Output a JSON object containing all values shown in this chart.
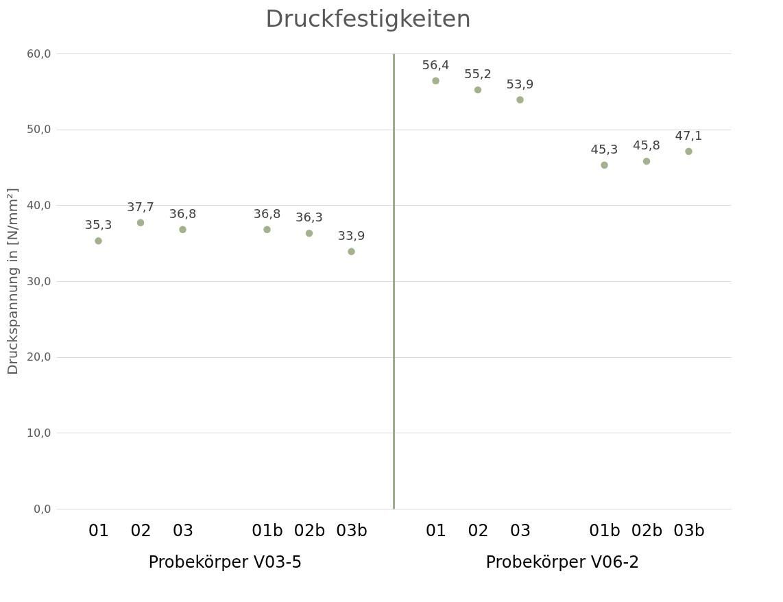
{
  "chart_data": [
    {
      "type": "scatter",
      "title": "Druckfestigkeiten",
      "ylabel": "Druckspannung in [N/mm²]",
      "xlabel": "Probekörper V03-5",
      "categories": [
        "01",
        "02",
        "03",
        null,
        "01b",
        "02b",
        "03b"
      ],
      "series": [
        {
          "color": "#a2b38b",
          "values": [
            35.3,
            37.7,
            36.8,
            null,
            36.8,
            36.3,
            33.9
          ],
          "value_labels": [
            "35,3",
            "37,7",
            "36,8",
            null,
            "36,8",
            "36,3",
            "33,9"
          ]
        }
      ],
      "ylim": [
        0,
        60
      ],
      "yticks": [
        {
          "value": 0,
          "label": "0,0"
        },
        {
          "value": 10,
          "label": "10,0"
        },
        {
          "value": 20,
          "label": "20,0"
        },
        {
          "value": 30,
          "label": "30,0"
        },
        {
          "value": 40,
          "label": "40,0"
        },
        {
          "value": 50,
          "label": "50,0"
        },
        {
          "value": 60,
          "label": "60,0"
        }
      ],
      "grid": "y",
      "marker": "circle"
    },
    {
      "type": "scatter",
      "xlabel": "Probekörper V06-2",
      "categories": [
        "01",
        "02",
        "03",
        null,
        "01b",
        "02b",
        "03b"
      ],
      "series": [
        {
          "color": "#a2b38b",
          "values": [
            56.4,
            55.2,
            53.9,
            null,
            45.3,
            45.8,
            47.1
          ],
          "value_labels": [
            "56,4",
            "55,2",
            "53,9",
            null,
            "45,3",
            "45,8",
            "47,1"
          ]
        }
      ],
      "ylim": [
        0,
        60
      ],
      "yticks": [
        0,
        10,
        20,
        30,
        40,
        50,
        60
      ],
      "tick_labels": "x",
      "grid": "y",
      "marker": "circle"
    }
  ]
}
